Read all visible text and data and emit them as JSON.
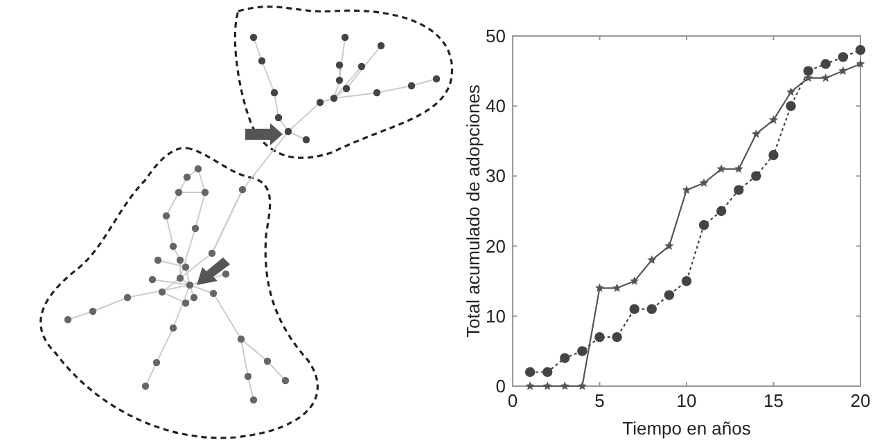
{
  "chart_data": {
    "type": "line",
    "xlabel": "Tiempo en años",
    "ylabel": "Total acumulado de adopciones",
    "x": [
      1,
      2,
      3,
      4,
      5,
      6,
      7,
      8,
      9,
      10,
      11,
      12,
      13,
      14,
      15,
      16,
      17,
      18,
      19,
      20
    ],
    "series": [
      {
        "color": "#555555",
        "marker": "star",
        "line_style": "solid",
        "values": [
          0,
          0,
          0,
          0,
          14,
          14,
          15,
          18,
          20,
          28,
          29,
          31,
          31,
          36,
          38,
          42,
          44,
          44,
          45,
          46
        ]
      },
      {
        "color": "#444444",
        "marker": "circle",
        "line_style": "dotted",
        "values": [
          2,
          2,
          4,
          5,
          7,
          7,
          11,
          11,
          13,
          15,
          23,
          25,
          28,
          30,
          33,
          40,
          45,
          46,
          47,
          48
        ]
      }
    ],
    "xlim": [
      0,
      20
    ],
    "xticks": [
      0,
      5,
      10,
      15,
      20
    ],
    "ylim": [
      0,
      50
    ],
    "yticks": [
      0,
      10,
      20,
      30,
      40,
      50
    ],
    "grid": false
  }
}
